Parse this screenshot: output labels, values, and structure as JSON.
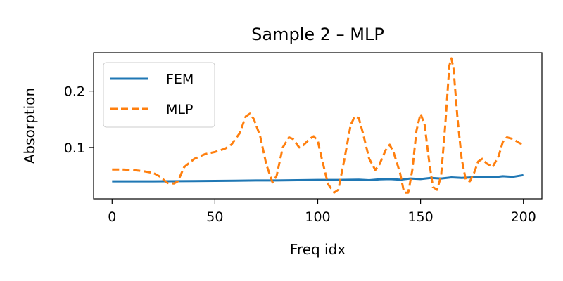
{
  "chart_data": {
    "type": "line",
    "title": "Sample 2 – MLP",
    "xlabel": "Freq idx",
    "ylabel": "Absorption",
    "xlim": [
      -9,
      209
    ],
    "ylim": [
      0.009,
      0.268
    ],
    "xticks": [
      0,
      50,
      100,
      150,
      200
    ],
    "xtick_labels": [
      "0",
      "50",
      "100",
      "150",
      "200"
    ],
    "yticks": [
      0.1,
      0.2
    ],
    "ytick_labels": [
      "0.1",
      "0.2"
    ],
    "grid": false,
    "legend_position": "upper-left",
    "series": [
      {
        "name": "FEM",
        "color": "#1f77b4",
        "dash": "solid",
        "points": [
          [
            0,
            0.04
          ],
          [
            20,
            0.04
          ],
          [
            40,
            0.0405
          ],
          [
            60,
            0.041
          ],
          [
            70,
            0.0415
          ],
          [
            80,
            0.0415
          ],
          [
            90,
            0.042
          ],
          [
            100,
            0.0425
          ],
          [
            110,
            0.0425
          ],
          [
            120,
            0.043
          ],
          [
            125,
            0.042
          ],
          [
            130,
            0.0435
          ],
          [
            135,
            0.044
          ],
          [
            140,
            0.043
          ],
          [
            145,
            0.045
          ],
          [
            150,
            0.044
          ],
          [
            155,
            0.046
          ],
          [
            160,
            0.045
          ],
          [
            165,
            0.047
          ],
          [
            170,
            0.046
          ],
          [
            175,
            0.047
          ],
          [
            180,
            0.048
          ],
          [
            185,
            0.047
          ],
          [
            190,
            0.049
          ],
          [
            195,
            0.048
          ],
          [
            200,
            0.051
          ]
        ]
      },
      {
        "name": "MLP",
        "color": "#ff7f0e",
        "dash": "dashed",
        "points": [
          [
            0,
            0.061
          ],
          [
            5,
            0.061
          ],
          [
            10,
            0.06
          ],
          [
            15,
            0.058
          ],
          [
            20,
            0.055
          ],
          [
            23,
            0.049
          ],
          [
            27,
            0.037
          ],
          [
            30,
            0.036
          ],
          [
            32,
            0.04
          ],
          [
            35,
            0.065
          ],
          [
            40,
            0.08
          ],
          [
            45,
            0.088
          ],
          [
            50,
            0.092
          ],
          [
            55,
            0.098
          ],
          [
            58,
            0.105
          ],
          [
            62,
            0.125
          ],
          [
            65,
            0.155
          ],
          [
            67,
            0.16
          ],
          [
            69,
            0.15
          ],
          [
            72,
            0.12
          ],
          [
            75,
            0.07
          ],
          [
            78,
            0.038
          ],
          [
            80,
            0.05
          ],
          [
            83,
            0.1
          ],
          [
            86,
            0.118
          ],
          [
            88,
            0.115
          ],
          [
            91,
            0.1
          ],
          [
            93,
            0.104
          ],
          [
            96,
            0.115
          ],
          [
            98,
            0.12
          ],
          [
            100,
            0.112
          ],
          [
            102,
            0.08
          ],
          [
            105,
            0.035
          ],
          [
            108,
            0.02
          ],
          [
            110,
            0.025
          ],
          [
            113,
            0.08
          ],
          [
            116,
            0.14
          ],
          [
            118,
            0.155
          ],
          [
            120,
            0.152
          ],
          [
            122,
            0.125
          ],
          [
            125,
            0.08
          ],
          [
            128,
            0.06
          ],
          [
            130,
            0.07
          ],
          [
            133,
            0.095
          ],
          [
            135,
            0.105
          ],
          [
            137,
            0.09
          ],
          [
            140,
            0.055
          ],
          [
            142,
            0.02
          ],
          [
            144,
            0.02
          ],
          [
            146,
            0.06
          ],
          [
            148,
            0.13
          ],
          [
            150,
            0.16
          ],
          [
            152,
            0.14
          ],
          [
            154,
            0.08
          ],
          [
            156,
            0.03
          ],
          [
            158,
            0.025
          ],
          [
            160,
            0.05
          ],
          [
            162,
            0.14
          ],
          [
            164,
            0.245
          ],
          [
            165,
            0.258
          ],
          [
            166,
            0.24
          ],
          [
            168,
            0.15
          ],
          [
            170,
            0.08
          ],
          [
            172,
            0.042
          ],
          [
            174,
            0.04
          ],
          [
            176,
            0.055
          ],
          [
            178,
            0.075
          ],
          [
            180,
            0.08
          ],
          [
            182,
            0.072
          ],
          [
            185,
            0.065
          ],
          [
            188,
            0.085
          ],
          [
            190,
            0.11
          ],
          [
            192,
            0.118
          ],
          [
            195,
            0.115
          ],
          [
            198,
            0.108
          ],
          [
            200,
            0.105
          ]
        ]
      }
    ]
  }
}
